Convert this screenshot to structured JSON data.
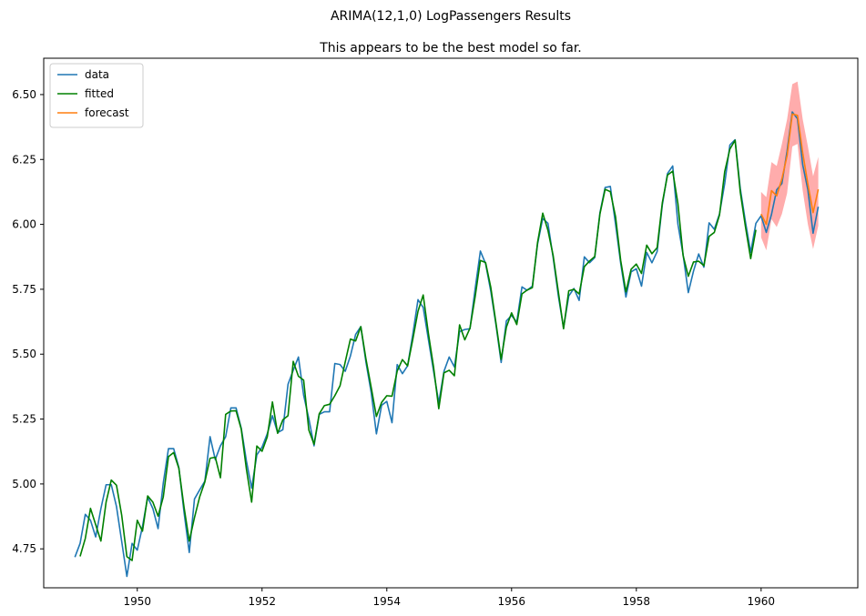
{
  "chart_data": {
    "type": "line",
    "title": "ARIMA(12,1,0) LogPassengers Results",
    "subtitle": "This appears to be the best model so far.",
    "xlabel": "",
    "ylabel": "",
    "xlim": [
      1948.5,
      1961.55
    ],
    "ylim": [
      4.6,
      6.64
    ],
    "x_ticks": [
      1950,
      1952,
      1954,
      1956,
      1958,
      1960
    ],
    "x_tick_labels": [
      "1950",
      "1952",
      "1954",
      "1956",
      "1958",
      "1960"
    ],
    "y_ticks": [
      4.75,
      5.0,
      5.25,
      5.5,
      5.75,
      6.0,
      6.25,
      6.5
    ],
    "y_tick_labels": [
      "4.75",
      "5.00",
      "5.25",
      "5.50",
      "5.75",
      "6.00",
      "6.25",
      "6.50"
    ],
    "legend_position": "upper-left",
    "colors": {
      "data": "#1f77b4",
      "fitted": "#008000",
      "forecast": "#ff7f0e",
      "confidence_band": "#ff8080"
    },
    "series": [
      {
        "name": "data",
        "start": 1949.0,
        "step": 0.08333,
        "values": [
          4.718,
          4.771,
          4.883,
          4.86,
          4.796,
          4.905,
          4.997,
          4.997,
          4.913,
          4.779,
          4.644,
          4.771,
          4.745,
          4.836,
          4.949,
          4.905,
          4.828,
          5.004,
          5.136,
          5.136,
          5.063,
          4.89,
          4.736,
          4.942,
          4.977,
          5.011,
          5.182,
          5.094,
          5.147,
          5.182,
          5.293,
          5.293,
          5.215,
          5.088,
          4.984,
          5.112,
          5.142,
          5.193,
          5.263,
          5.198,
          5.209,
          5.384,
          5.438,
          5.489,
          5.342,
          5.252,
          5.147,
          5.268,
          5.278,
          5.278,
          5.464,
          5.46,
          5.434,
          5.493,
          5.576,
          5.606,
          5.468,
          5.352,
          5.193,
          5.303,
          5.318,
          5.236,
          5.46,
          5.425,
          5.455,
          5.576,
          5.71,
          5.68,
          5.557,
          5.434,
          5.313,
          5.434,
          5.489,
          5.451,
          5.587,
          5.595,
          5.598,
          5.753,
          5.897,
          5.849,
          5.743,
          5.613,
          5.468,
          5.628,
          5.649,
          5.624,
          5.759,
          5.746,
          5.762,
          5.924,
          6.023,
          6.004,
          5.872,
          5.724,
          5.602,
          5.724,
          5.753,
          5.707,
          5.875,
          5.852,
          5.872,
          6.045,
          6.142,
          6.146,
          6.001,
          5.849,
          5.72,
          5.817,
          5.829,
          5.762,
          5.892,
          5.852,
          5.895,
          6.075,
          6.196,
          6.225,
          6.001,
          5.883,
          5.737,
          5.82,
          5.886,
          5.835,
          6.006,
          5.981,
          6.04,
          6.157,
          6.306,
          6.326,
          6.138,
          6.009,
          5.892,
          6.004,
          6.033,
          5.969,
          6.038,
          6.133,
          6.157,
          6.282,
          6.433,
          6.407,
          6.23,
          6.133,
          5.966,
          6.068
        ]
      },
      {
        "name": "fitted",
        "start": 1949.0833,
        "step": 0.08333,
        "values": [
          4.721,
          4.79,
          4.906,
          4.843,
          4.78,
          4.93,
          5.015,
          4.995,
          4.88,
          4.72,
          4.705,
          4.86,
          4.818,
          4.954,
          4.93,
          4.876,
          4.95,
          5.105,
          5.121,
          5.06,
          4.91,
          4.78,
          4.87,
          4.95,
          5.008,
          5.099,
          5.103,
          5.024,
          5.268,
          5.281,
          5.282,
          5.211,
          5.056,
          4.93,
          5.146,
          5.126,
          5.181,
          5.316,
          5.195,
          5.247,
          5.263,
          5.472,
          5.415,
          5.4,
          5.208,
          5.153,
          5.27,
          5.302,
          5.307,
          5.34,
          5.378,
          5.47,
          5.558,
          5.551,
          5.606,
          5.48,
          5.372,
          5.26,
          5.314,
          5.34,
          5.338,
          5.435,
          5.479,
          5.455,
          5.557,
          5.665,
          5.728,
          5.58,
          5.45,
          5.29,
          5.428,
          5.438,
          5.417,
          5.613,
          5.555,
          5.6,
          5.722,
          5.861,
          5.853,
          5.758,
          5.62,
          5.48,
          5.604,
          5.659,
          5.614,
          5.732,
          5.747,
          5.756,
          5.93,
          6.043,
          5.977,
          5.88,
          5.74,
          5.598,
          5.744,
          5.75,
          5.732,
          5.837,
          5.859,
          5.876,
          6.04,
          6.135,
          6.126,
          6.03,
          5.86,
          5.74,
          5.827,
          5.847,
          5.811,
          5.92,
          5.887,
          5.91,
          6.083,
          6.19,
          6.205,
          6.08,
          5.88,
          5.8,
          5.855,
          5.858,
          5.841,
          5.954,
          5.969,
          6.036,
          6.203,
          6.29,
          6.324,
          6.124,
          5.99,
          5.868,
          5.979
        ]
      },
      {
        "name": "forecast",
        "start": 1960.0,
        "step": 0.08333,
        "values": [
          6.04,
          6.0,
          6.13,
          6.11,
          6.175,
          6.265,
          6.425,
          6.42,
          6.275,
          6.155,
          6.045,
          6.135
        ],
        "lower": [
          5.95,
          5.9,
          6.02,
          5.99,
          6.04,
          6.12,
          6.3,
          6.31,
          6.13,
          6.0,
          5.905,
          5.995
        ],
        "upper": [
          6.125,
          6.105,
          6.24,
          6.225,
          6.31,
          6.405,
          6.54,
          6.55,
          6.405,
          6.3,
          6.185,
          6.26
        ]
      }
    ]
  }
}
